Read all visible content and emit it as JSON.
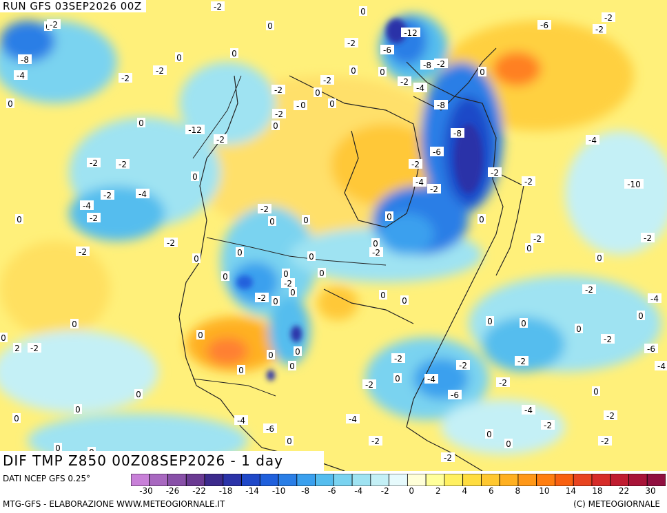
{
  "run_title": "RUN GFS 03SEP2026 00Z",
  "main_title": "DIF TMP Z850 00Z08SEP2026 - 1 day",
  "legend_title": "DATI NCEP GFS 0.25°",
  "footer_left": "MTG-GFS - ELABORAZIONE WWW.METEOGIORNALE.IT",
  "footer_right": "(C) METEOGIORNALE",
  "colorbar": {
    "colors": [
      "#c880d8",
      "#a868c0",
      "#8850a8",
      "#6a3a92",
      "#3c2a8c",
      "#2b33a8",
      "#1f48c8",
      "#2060dc",
      "#2a7ee6",
      "#3aa0ee",
      "#55bdee",
      "#7ad3f0",
      "#9fe3f2",
      "#c4f0f6",
      "#e6fafc",
      "#ffffd8",
      "#ffff9a",
      "#fff060",
      "#ffdd40",
      "#ffc830",
      "#ffb020",
      "#ff9818",
      "#ff7e10",
      "#f86010",
      "#e84420",
      "#d62c28",
      "#c01c30",
      "#a81438",
      "#901040"
    ],
    "tick_labels": [
      "-30",
      "-26",
      "-22",
      "-18",
      "-14",
      "-10",
      "-8",
      "-6",
      "-4",
      "-2",
      "0",
      "2",
      "4",
      "6",
      "8",
      "10",
      "14",
      "18",
      "22",
      "30"
    ]
  },
  "map_labels": [
    "-2",
    "0",
    "-8",
    "-4",
    "-2",
    "-12",
    "-6",
    "0",
    "0",
    "-8",
    "-2",
    "-2",
    "-2",
    "0",
    "-8",
    "-6",
    "-4",
    "0",
    "-2",
    "-8",
    "-4",
    "-2",
    "0",
    "0",
    "-2",
    "-2",
    "0",
    "-2",
    "-12",
    "0",
    "-2",
    "-6",
    "-2",
    "-4",
    "-10",
    "-2",
    "0",
    "-2",
    "0",
    "-2",
    "-2",
    "-4",
    "0",
    "0",
    "-2",
    "-6",
    "-4",
    "-2",
    "-2",
    "-2",
    "-4",
    "0",
    "-2",
    "-6",
    "-4",
    "-2",
    "-2",
    "0",
    "-2",
    "0",
    "0",
    "-4",
    "-2",
    "-2",
    "0",
    "-2",
    "-2",
    "-2",
    "-2",
    "-4",
    "-4",
    "-2",
    "0",
    "0",
    "-2",
    "-2",
    "0",
    "0",
    "-2",
    "0",
    "0",
    "0",
    "0",
    "-2",
    "0",
    "-2",
    "0",
    "0",
    "0",
    "0",
    "-2",
    "0",
    "-2",
    "0",
    "0",
    "0",
    "0",
    "0",
    "0",
    "0",
    "0",
    "0",
    "0",
    "0",
    "0",
    "0",
    "0",
    "0",
    "-4",
    "-6",
    "0",
    "-2",
    "-2",
    "0",
    "-2",
    "2",
    "0",
    "0",
    "-2",
    "-2",
    "0",
    "0",
    "-2",
    "0"
  ],
  "map_icons": [
    "temperature-anomaly-field",
    "coastline-outline",
    "border-outline"
  ]
}
